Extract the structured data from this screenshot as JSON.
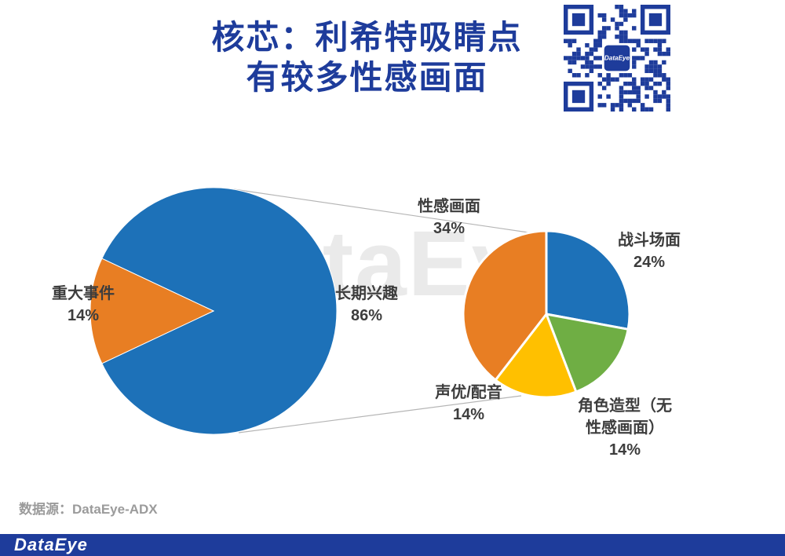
{
  "title": {
    "line1": "核芯：利希特吸睛点",
    "line2": "有较多性感画面"
  },
  "watermark": "DataEye",
  "source_text": "数据源：DataEye-ADX",
  "footer": {
    "brand": "DataEye"
  },
  "qr": {
    "logo_text": "DataEye"
  },
  "colors": {
    "brand_blue": "#1E3C9B",
    "qr_blue": "#1E3C9B",
    "pie_blue": "#1D71B8",
    "pie_orange": "#E87E23",
    "pie_green": "#6FAE44",
    "pie_yellow": "#FFC000",
    "label_text": "#3d3d3d",
    "source_text": "#9b9b9b",
    "connector_gray": "#b5b5b5"
  },
  "chart_data": [
    {
      "type": "pie",
      "name": "overall-attention-split",
      "start_angle": 295.2,
      "legend_position": "none",
      "slices": [
        {
          "label": "长期兴趣",
          "value": 86,
          "pct": "86%",
          "color": "#1D71B8"
        },
        {
          "label": "重大事件",
          "value": 14,
          "pct": "14%",
          "color": "#E87E23"
        }
      ]
    },
    {
      "type": "pie",
      "name": "long-term-interest-breakdown",
      "start_angle": 0,
      "legend_position": "none",
      "slices": [
        {
          "label": "战斗场面",
          "value": 24,
          "pct": "24%",
          "color": "#1D71B8"
        },
        {
          "label": "角色造型（无性感画面）",
          "value": 14,
          "pct": "14%",
          "color": "#6FAE44"
        },
        {
          "label": "声优/配音",
          "value": 14,
          "pct": "14%",
          "color": "#FFC000"
        },
        {
          "label": "性感画面",
          "value": 34,
          "pct": "34%",
          "color": "#E87E23"
        }
      ]
    }
  ]
}
